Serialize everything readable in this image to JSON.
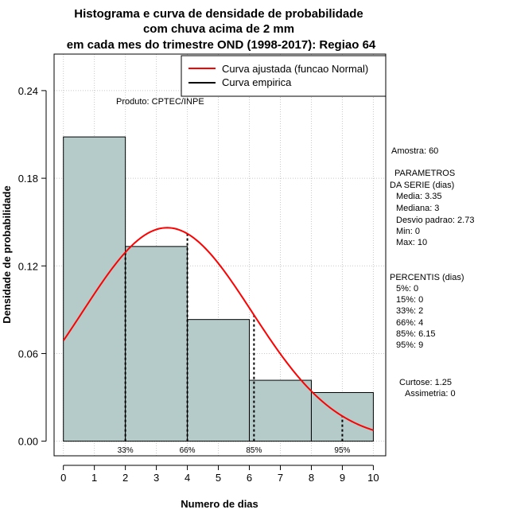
{
  "chart_data": {
    "type": "bar",
    "title": [
      "Histograma e curva de densidade de probabilidade",
      "com chuva acima de 2 mm",
      "em cada mes do trimestre OND (1998-2017): Regiao 64"
    ],
    "xlabel": "Numero de dias",
    "ylabel": "Densidade de probabilidade",
    "xlim": [
      -0.3,
      10.4
    ],
    "ylim": [
      -0.01,
      0.265
    ],
    "x_ticks": [
      0,
      1,
      2,
      3,
      4,
      5,
      6,
      7,
      8,
      9,
      10
    ],
    "y_ticks": [
      0.0,
      0.06,
      0.12,
      0.18,
      0.24
    ],
    "y_tick_labels": [
      "0.00",
      "0.06",
      "0.12",
      "0.18",
      "0.24"
    ],
    "bins": [
      {
        "start": 0,
        "end": 2,
        "density": 0.2083
      },
      {
        "start": 2,
        "end": 4,
        "density": 0.1333
      },
      {
        "start": 4,
        "end": 6,
        "density": 0.0833
      },
      {
        "start": 6,
        "end": 8,
        "density": 0.0417
      },
      {
        "start": 8,
        "end": 10,
        "density": 0.0333
      }
    ],
    "bar_color": "#b4cbc9",
    "normal_curve": {
      "name": "Curva ajustada (funcao Normal)",
      "mean": 3.35,
      "sd": 2.73,
      "color": "#ff0000"
    },
    "empirical_curve": {
      "name": "Curva empirica",
      "color": "#000000"
    },
    "percentile_markers": [
      {
        "label": "33%",
        "x": 2
      },
      {
        "label": "66%",
        "x": 4
      },
      {
        "label": "85%",
        "x": 6.15
      },
      {
        "label": "95%",
        "x": 9
      }
    ],
    "legend_position": "top-right",
    "grid": true,
    "annotation": "Produto: CPTEC/INPE"
  },
  "stats": {
    "amostra": "Amostra: 60",
    "param_header1": "PARAMETROS",
    "param_header2": "DA SERIE (dias)",
    "media": "Media: 3.35",
    "mediana": "Mediana: 3",
    "desvio": "Desvio padrao: 2.73",
    "min": "Min: 0",
    "max": "Max: 10",
    "percentis_header": "PERCENTIS (dias)",
    "p5": "5%: 0",
    "p15": "15%: 0",
    "p33": "33%: 2",
    "p66": "66%: 4",
    "p85": "85%: 6.15",
    "p95": "95%: 9",
    "curtose": "Curtose: 1.25",
    "assimetria": "Assimetria: 0"
  }
}
